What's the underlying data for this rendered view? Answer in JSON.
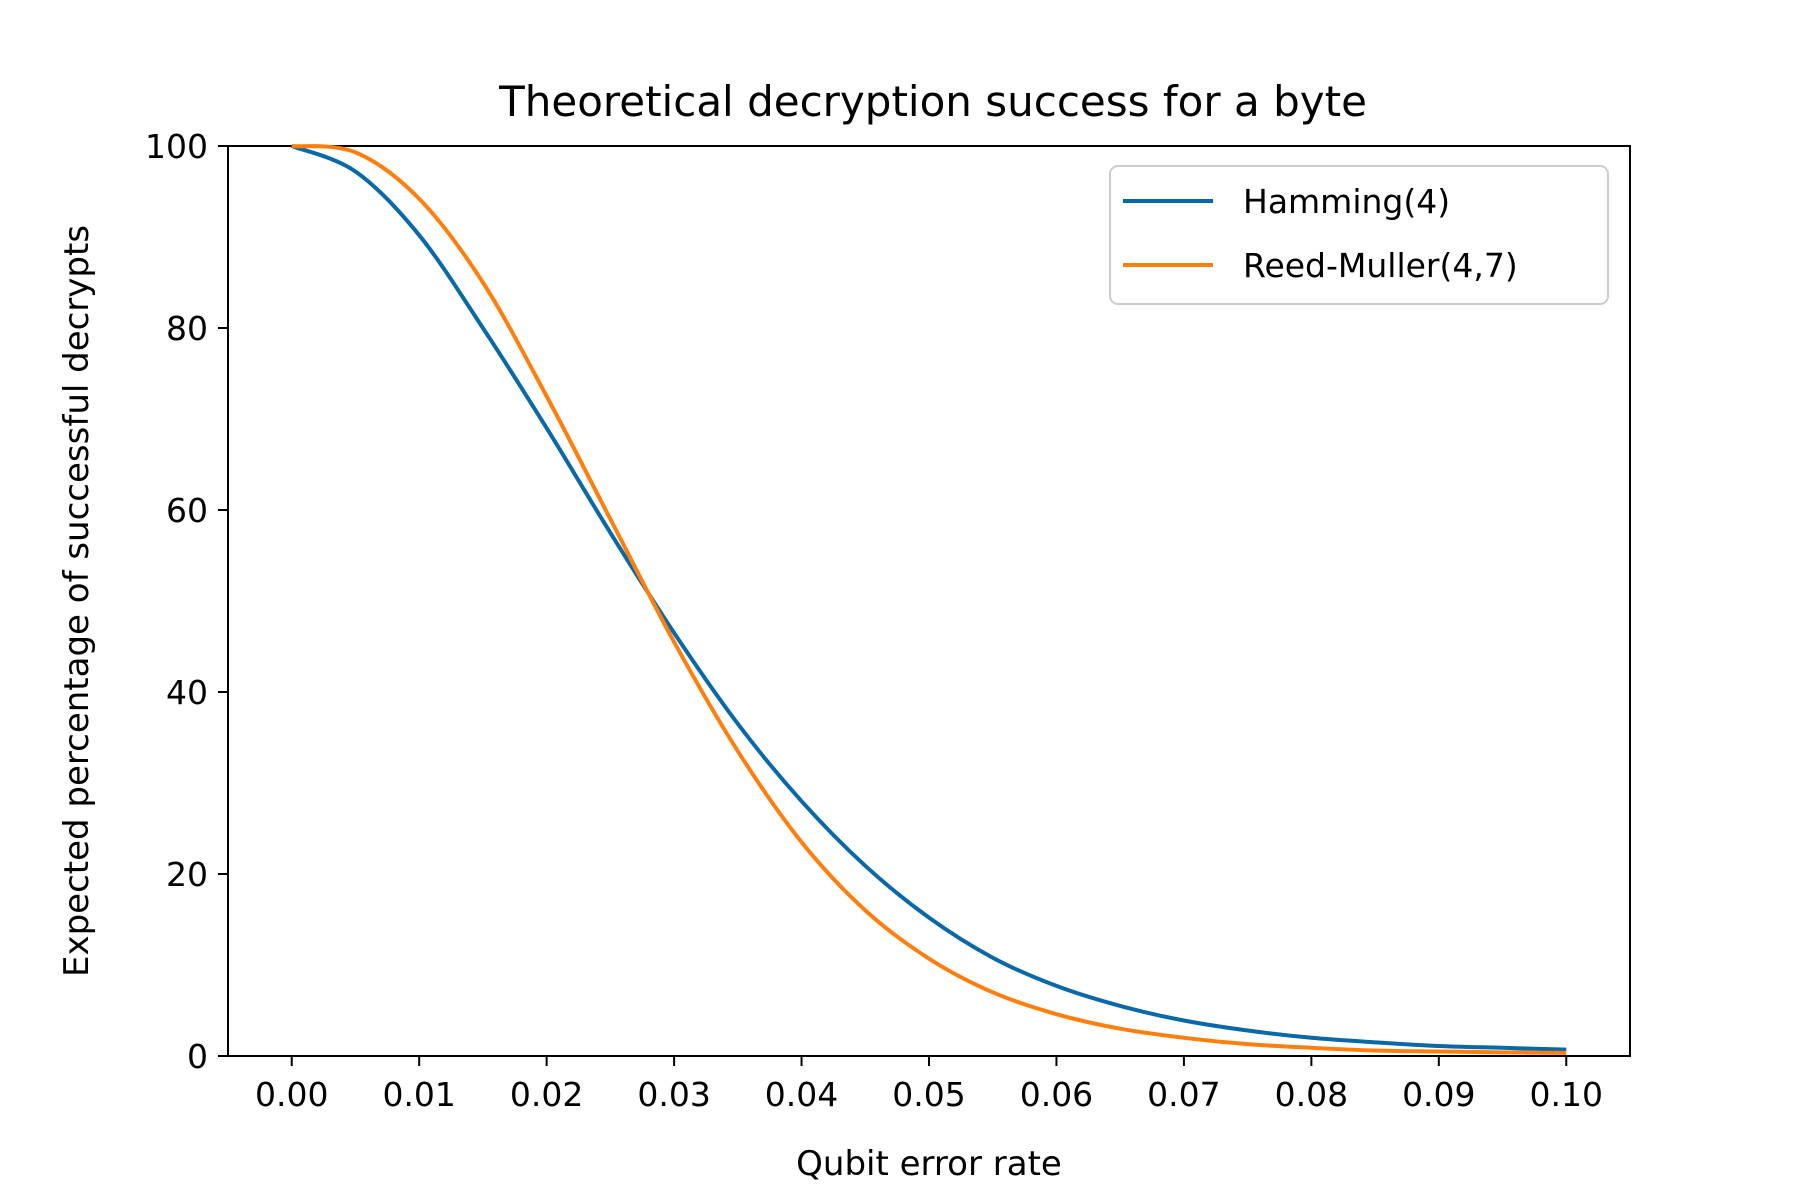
{
  "chart_data": {
    "type": "line",
    "title": "Theoretical decryption success for a byte",
    "xlabel": "Qubit error rate",
    "ylabel": "Expected percentage of successful decrypts",
    "xlim": [
      -0.005,
      0.105
    ],
    "ylim": [
      0,
      100
    ],
    "xticks": [
      "0.00",
      "0.01",
      "0.02",
      "0.03",
      "0.04",
      "0.05",
      "0.06",
      "0.07",
      "0.08",
      "0.09",
      "0.10"
    ],
    "yticks": [
      "0",
      "20",
      "40",
      "60",
      "80",
      "100"
    ],
    "grid": false,
    "legend_position": "top-right",
    "x": [
      0,
      0.005,
      0.01,
      0.015,
      0.02,
      0.025,
      0.03,
      0.035,
      0.04,
      0.045,
      0.05,
      0.055,
      0.06,
      0.065,
      0.07,
      0.075,
      0.08,
      0.085,
      0.09,
      0.095,
      0.1
    ],
    "series": [
      {
        "name": "Hamming(4)",
        "color": "#0868a8",
        "values": [
          100,
          97.2,
          90.2,
          80,
          69,
          57.5,
          46.5,
          36.5,
          28,
          20.9,
          15.2,
          10.8,
          7.7,
          5.5,
          3.9,
          2.8,
          2.0,
          1.5,
          1.1,
          0.9,
          0.7
        ]
      },
      {
        "name": "Reed-Muller(4,7)",
        "color": "#ff7f0e",
        "values": [
          100,
          99.3,
          94.2,
          85,
          72.5,
          59,
          45.5,
          33.5,
          23.5,
          16,
          10.7,
          7.0,
          4.6,
          3.0,
          2.0,
          1.3,
          0.9,
          0.6,
          0.5,
          0.4,
          0.35
        ]
      }
    ]
  }
}
